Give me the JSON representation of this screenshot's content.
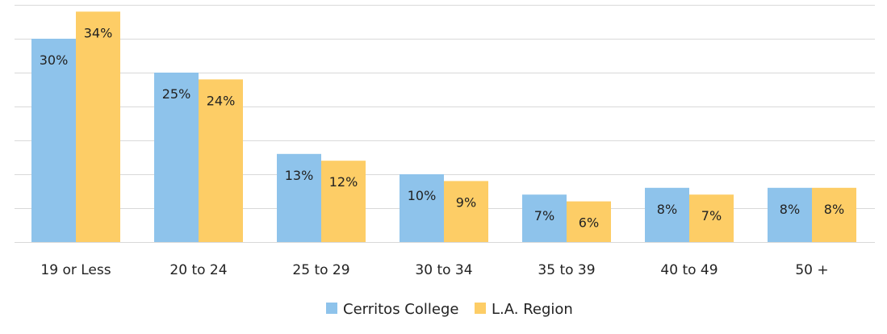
{
  "chart_data": {
    "type": "bar",
    "title": "",
    "xlabel": "",
    "ylabel": "",
    "ylim": [
      0,
      35
    ],
    "grid": true,
    "legend_position": "bottom",
    "categories": [
      "19 or Less",
      "20 to 24",
      "25 to 29",
      "30 to 34",
      "35 to 39",
      "40 to 49",
      "50 +"
    ],
    "series": [
      {
        "name": "Cerritos College",
        "color": "#8EC3EB",
        "values": [
          30,
          25,
          13,
          10,
          7,
          8,
          8
        ],
        "labels": [
          "30%",
          "25%",
          "13%",
          "10%",
          "7%",
          "8%",
          "8%"
        ]
      },
      {
        "name": "L.A. Region",
        "color": "#FDCD66",
        "values": [
          34,
          24,
          12,
          9,
          6,
          7,
          8
        ],
        "labels": [
          "34%",
          "24%",
          "12%",
          "9%",
          "6%",
          "7%",
          "8%"
        ]
      }
    ]
  }
}
